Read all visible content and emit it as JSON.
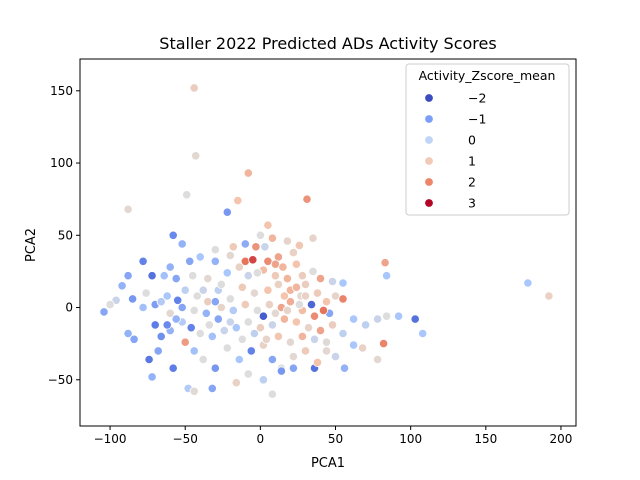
{
  "chart_data": {
    "type": "scatter",
    "title": "Staller 2022 Predicted ADs Activity Scores",
    "xlabel": "PCA1",
    "ylabel": "PCA2",
    "xlim": [
      -120,
      210
    ],
    "ylim": [
      -82,
      172
    ],
    "xticks": [
      -100,
      -50,
      0,
      50,
      100,
      150,
      200
    ],
    "yticks": [
      -50,
      0,
      50,
      100,
      150
    ],
    "grid": false,
    "legend": {
      "title": "Activity_Zscore_mean",
      "placement": "top-right",
      "entries": [
        {
          "label": "−2",
          "color": "#3b4cc0"
        },
        {
          "label": "−1",
          "color": "#7b9ff9"
        },
        {
          "label": "0",
          "color": "#c0d4f5"
        },
        {
          "label": "1",
          "color": "#f2cbb7"
        },
        {
          "label": "2",
          "color": "#ee8468"
        },
        {
          "label": "3",
          "color": "#b40426"
        }
      ]
    },
    "points": [
      [
        -44,
        152,
        0.5
      ],
      [
        -43,
        105,
        0.2
      ],
      [
        -49,
        78,
        0.0
      ],
      [
        -88,
        68,
        0.2
      ],
      [
        -8,
        93,
        1.0
      ],
      [
        -15,
        74,
        0.8
      ],
      [
        31,
        75,
        1.4
      ],
      [
        -22,
        66,
        -1.2
      ],
      [
        -58,
        50,
        -1.4
      ],
      [
        -52,
        44,
        -0.8
      ],
      [
        -10,
        44,
        -0.9
      ],
      [
        0,
        50,
        0.0
      ],
      [
        5,
        57,
        0.8
      ],
      [
        8,
        48,
        1.0
      ],
      [
        18,
        46,
        0.3
      ],
      [
        26,
        43,
        0.7
      ],
      [
        35,
        48,
        0.3
      ],
      [
        22,
        38,
        0.4
      ],
      [
        12,
        35,
        1.2
      ],
      [
        -3,
        42,
        1.4
      ],
      [
        -18,
        42,
        0.6
      ],
      [
        -30,
        40,
        0.0
      ],
      [
        -40,
        35,
        -0.5
      ],
      [
        -10,
        32,
        1.8
      ],
      [
        -5,
        33,
        2.3
      ],
      [
        5,
        32,
        1.5
      ],
      [
        10,
        30,
        1.2
      ],
      [
        15,
        28,
        1.0
      ],
      [
        24,
        30,
        0.8
      ],
      [
        35,
        25,
        0.0
      ],
      [
        3,
        42,
        -0.2
      ],
      [
        -47,
        32,
        -1.0
      ],
      [
        -60,
        28,
        -0.8
      ],
      [
        -64,
        22,
        -0.6
      ],
      [
        -78,
        32,
        -1.5
      ],
      [
        -88,
        22,
        -1.0
      ],
      [
        -72,
        22,
        -1.8
      ],
      [
        -56,
        20,
        -1.0
      ],
      [
        -45,
        22,
        0.0
      ],
      [
        -35,
        20,
        0.2
      ],
      [
        -22,
        24,
        -0.5
      ],
      [
        -8,
        22,
        -0.2
      ],
      [
        2,
        26,
        0.9
      ],
      [
        18,
        20,
        1.0
      ],
      [
        28,
        22,
        0.5
      ],
      [
        40,
        20,
        1.2
      ],
      [
        48,
        18,
        -0.2
      ],
      [
        55,
        17,
        -0.5
      ],
      [
        83,
        31,
        1.2
      ],
      [
        84,
        22,
        -0.5
      ],
      [
        178,
        17,
        -0.5
      ],
      [
        192,
        8,
        0.4
      ],
      [
        -92,
        15,
        -0.8
      ],
      [
        -96,
        5,
        -0.2
      ],
      [
        -100,
        2,
        0.0
      ],
      [
        -104,
        -3,
        -1.0
      ],
      [
        -85,
        6,
        -1.2
      ],
      [
        -78,
        0,
        -0.6
      ],
      [
        -70,
        2,
        -1.1
      ],
      [
        -62,
        8,
        -0.5
      ],
      [
        -55,
        5,
        -1.5
      ],
      [
        -50,
        12,
        -0.3
      ],
      [
        -42,
        8,
        0.0
      ],
      [
        -35,
        4,
        0.5
      ],
      [
        -28,
        12,
        -0.3
      ],
      [
        -20,
        6,
        0.0
      ],
      [
        -12,
        14,
        0.6
      ],
      [
        -4,
        10,
        0.2
      ],
      [
        5,
        12,
        0.8
      ],
      [
        12,
        16,
        0.4
      ],
      [
        20,
        12,
        1.0
      ],
      [
        27,
        8,
        0.2
      ],
      [
        34,
        2,
        -2.0
      ],
      [
        38,
        10,
        0.6
      ],
      [
        44,
        4,
        0.8
      ],
      [
        50,
        8,
        0.3
      ],
      [
        55,
        6,
        1.6
      ],
      [
        46,
        -4,
        -1.0
      ],
      [
        62,
        -8,
        -0.5
      ],
      [
        70,
        -12,
        -0.3
      ],
      [
        78,
        -8,
        -0.2
      ],
      [
        84,
        -6,
        0.0
      ],
      [
        92,
        -6,
        -0.5
      ],
      [
        103,
        -8,
        -1.8
      ],
      [
        108,
        -18,
        -0.5
      ],
      [
        -88,
        -18,
        -0.8
      ],
      [
        -84,
        -22,
        -1.0
      ],
      [
        -70,
        -12,
        -1.6
      ],
      [
        -66,
        -20,
        -1.3
      ],
      [
        -60,
        -16,
        -0.8
      ],
      [
        -52,
        -10,
        -0.4
      ],
      [
        -46,
        -14,
        -1.5
      ],
      [
        -40,
        -18,
        0.0
      ],
      [
        -32,
        -20,
        -0.6
      ],
      [
        -24,
        -16,
        -0.2
      ],
      [
        -16,
        -14,
        -0.5
      ],
      [
        -8,
        -10,
        0.0
      ],
      [
        0,
        -14,
        0.5
      ],
      [
        8,
        -12,
        -0.2
      ],
      [
        16,
        -8,
        1.0
      ],
      [
        24,
        -10,
        0.8
      ],
      [
        32,
        -14,
        0.3
      ],
      [
        40,
        -16,
        1.2
      ],
      [
        48,
        -12,
        0.5
      ],
      [
        55,
        -18,
        -0.3
      ],
      [
        62,
        -26,
        -0.5
      ],
      [
        68,
        -28,
        0.4
      ],
      [
        82,
        -25,
        1.6
      ],
      [
        78,
        -36,
        0.2
      ],
      [
        -74,
        -36,
        -1.7
      ],
      [
        -68,
        -30,
        -1.0
      ],
      [
        -58,
        -42,
        -1.6
      ],
      [
        -50,
        -24,
        1.3
      ],
      [
        -44,
        -30,
        -0.6
      ],
      [
        -38,
        -36,
        0.0
      ],
      [
        -30,
        -42,
        -1.2
      ],
      [
        -22,
        -28,
        0.0
      ],
      [
        -14,
        -36,
        -0.5
      ],
      [
        -6,
        -30,
        -1.5
      ],
      [
        2,
        -26,
        0.4
      ],
      [
        8,
        -36,
        -1.0
      ],
      [
        14,
        -42,
        0.0
      ],
      [
        22,
        -34,
        0.2
      ],
      [
        30,
        -30,
        0.6
      ],
      [
        38,
        -38,
        1.0
      ],
      [
        44,
        -30,
        0.2
      ],
      [
        50,
        -34,
        -0.2
      ],
      [
        56,
        -42,
        -0.8
      ],
      [
        -72,
        -48,
        -0.8
      ],
      [
        -48,
        -56,
        -0.4
      ],
      [
        -44,
        -58,
        0.1
      ],
      [
        -32,
        -56,
        -1.0
      ],
      [
        -16,
        -52,
        0.4
      ],
      [
        -8,
        -46,
        0.0
      ],
      [
        2,
        -50,
        -0.3
      ],
      [
        8,
        -60,
        0.0
      ],
      [
        14,
        -44,
        -1.2
      ],
      [
        22,
        -42,
        -1.0
      ],
      [
        36,
        -42,
        -1.8
      ],
      [
        38,
        -38,
        0.8
      ],
      [
        -30,
        4,
        -1.0
      ],
      [
        -26,
        0,
        0.3
      ],
      [
        -18,
        -2,
        -0.4
      ],
      [
        -10,
        2,
        0.6
      ],
      [
        -2,
        -2,
        0.0
      ],
      [
        6,
        2,
        0.4
      ],
      [
        14,
        0,
        1.2
      ],
      [
        20,
        4,
        1.1
      ],
      [
        28,
        -2,
        0.9
      ],
      [
        36,
        -6,
        1.5
      ],
      [
        42,
        -2,
        1.8
      ],
      [
        -36,
        -4,
        -0.8
      ],
      [
        -44,
        -2,
        0.0
      ],
      [
        -52,
        0,
        -1.0
      ],
      [
        -60,
        -4,
        0.2
      ],
      [
        -66,
        4,
        -0.4
      ],
      [
        -76,
        10,
        0.0
      ],
      [
        -12,
        -22,
        0.0
      ],
      [
        -4,
        -18,
        -0.3
      ],
      [
        4,
        -22,
        0.3
      ],
      [
        12,
        -20,
        0.7
      ],
      [
        20,
        -24,
        0.2
      ],
      [
        28,
        -20,
        1.0
      ],
      [
        36,
        -22,
        -0.2
      ],
      [
        44,
        -24,
        0.1
      ],
      [
        -2,
        24,
        0.0
      ],
      [
        10,
        22,
        0.6
      ],
      [
        16,
        8,
        0.8
      ],
      [
        24,
        14,
        1.0
      ],
      [
        30,
        16,
        0.5
      ],
      [
        -30,
        32,
        -0.8
      ],
      [
        -20,
        36,
        0.2
      ],
      [
        -14,
        28,
        0.4
      ],
      [
        -26,
        16,
        0.0
      ],
      [
        -38,
        12,
        -0.2
      ],
      [
        2,
        -6,
        -2.2
      ],
      [
        10,
        -4,
        0.2
      ],
      [
        18,
        -2,
        0.3
      ],
      [
        26,
        2,
        0.0
      ],
      [
        30,
        8,
        0.4
      ],
      [
        -28,
        -8,
        -1.0
      ],
      [
        -20,
        -10,
        -0.2
      ],
      [
        -34,
        -12,
        0.0
      ],
      [
        -56,
        -8,
        -0.8
      ],
      [
        -62,
        -12,
        -1.4
      ]
    ]
  }
}
